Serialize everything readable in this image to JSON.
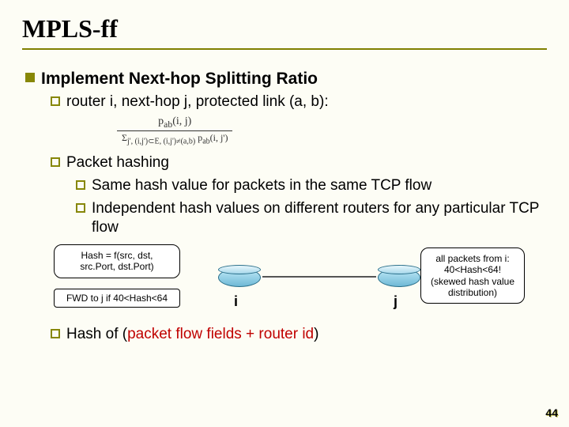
{
  "title": "MPLS-ff",
  "bullets": {
    "l1_1": "Implement Next-hop Splitting Ratio",
    "l2_1": "router i, next-hop j, protected link (a, b):",
    "l2_2": "Packet hashing",
    "l3_1": "Same hash value for packets in the same TCP flow",
    "l3_2": "Independent hash values on different routers for any particular TCP flow",
    "l2_3_pre": "Hash of (",
    "l2_3_red": "packet flow fields + router id",
    "l2_3_post": ")"
  },
  "formula": {
    "numerator": "p",
    "num_sub": "ab",
    "num_args": "(i, j)",
    "den_prefix": "Σ",
    "den_sub": "j', (i,j')⊂E, (i,j')≠(a,b)",
    "den_body": " p",
    "den_body_sub": "ab",
    "den_args": "(i, j')"
  },
  "diagram": {
    "left_box_l1": "Hash = f(src, dst,",
    "left_box_l2": "src.Port, dst.Port)",
    "left_box2": "FWD to j if 40<Hash<64",
    "right_box_l1": "all packets from i:",
    "right_box_l2": "40<Hash<64!",
    "right_box_l3": "(skewed hash value",
    "right_box_l4": "distribution)",
    "label_i": "i",
    "label_j": "j"
  },
  "page": "44",
  "colors": {
    "accent": "#878707",
    "red": "#c00000",
    "bg": "#fdfdf5"
  }
}
